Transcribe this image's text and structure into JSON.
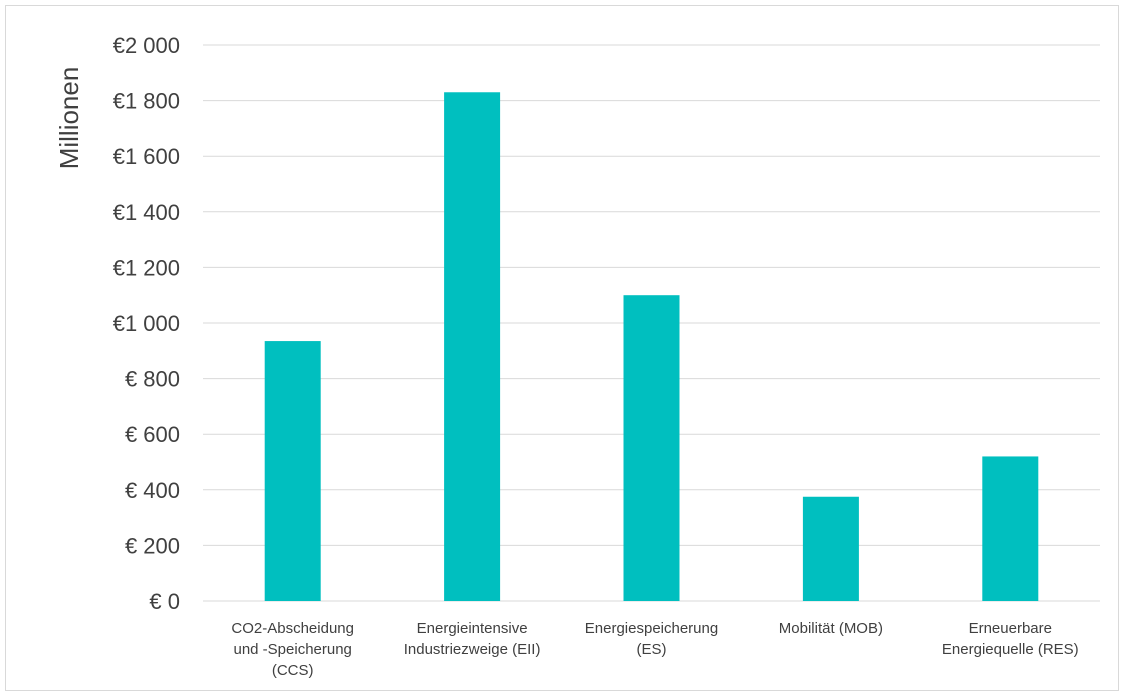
{
  "chart_data": {
    "type": "bar",
    "ylabel": "Millionen",
    "ylim": [
      0,
      2000
    ],
    "yticks": [
      0,
      200,
      400,
      600,
      800,
      1000,
      1200,
      1400,
      1600,
      1800,
      2000
    ],
    "ytick_labels": [
      "€ 0",
      "€ 200",
      "€ 400",
      "€ 600",
      "€ 800",
      "€1 000",
      "€1 200",
      "€1 400",
      "€1 600",
      "€1 800",
      "€2 000"
    ],
    "categories": [
      [
        "CO2-Abscheidung",
        "und -Speicherung",
        "(CCS)"
      ],
      [
        "Energieintensive",
        "Industriezweige (EII)"
      ],
      [
        "Energiespeicherung",
        "(ES)"
      ],
      [
        "Mobilität (MOB)"
      ],
      [
        "Erneuerbare",
        "Energiequelle (RES)"
      ]
    ],
    "values": [
      935,
      1830,
      1100,
      375,
      520
    ],
    "grid": true,
    "bar_color": "#00bfbf"
  }
}
